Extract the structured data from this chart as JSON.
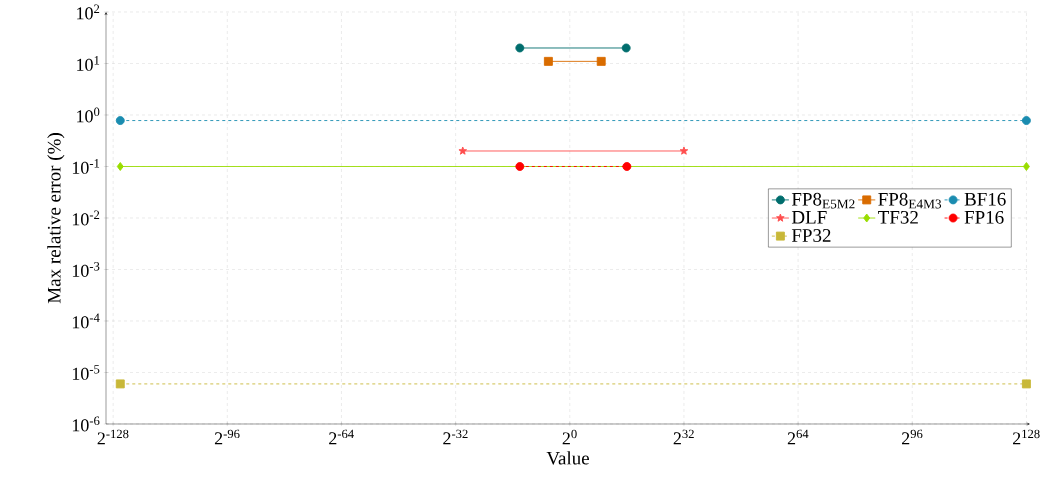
{
  "chart_data": {
    "type": "line",
    "xlabel": "Value",
    "ylabel": "Max relative error (%)",
    "log": "xy",
    "grid": true,
    "legend": "right",
    "xlim": [
      7.346839692639297e-40,
      6.80564733841877e+38
    ],
    "ylim": [
      1e-06,
      100
    ],
    "xticks": [
      {
        "value": 2.938735877055719e-39,
        "label": "2$^{-128}$"
      },
      {
        "value": 1.262177448353619e-29,
        "label": "2$^{-96}$"
      },
      {
        "value": 5.421010862427522e-20,
        "label": "2$^{-64}$"
      },
      {
        "value": 2.3283064365386963e-10,
        "label": "2$^{-32}$"
      },
      {
        "value": 1,
        "label": "2$^{0}$"
      },
      {
        "value": 4294967296,
        "label": "2$^{32}$"
      },
      {
        "value": 1.8446744073709552e+19,
        "label": "2$^{64}$"
      },
      {
        "value": 7.922816251426434e+28,
        "label": "2$^{96}$"
      },
      {
        "value": 3.402823669209385e+38,
        "label": "2$^{128}$"
      }
    ],
    "yticks": [
      {
        "value": 1e-06,
        "label": "10$^{-6}$"
      },
      {
        "value": 1e-05,
        "label": "10$^{-5}$"
      },
      {
        "value": 0.0001,
        "label": "10$^{-4}$"
      },
      {
        "value": 0.001,
        "label": "10$^{-3}$"
      },
      {
        "value": 0.01,
        "label": "10$^{-2}$"
      },
      {
        "value": 0.1,
        "label": "10$^{-1}$"
      },
      {
        "value": 1,
        "label": "10$^{0}$"
      },
      {
        "value": 10,
        "label": "10$^{1}$"
      },
      {
        "value": 100,
        "label": "10$^{2}$"
      }
    ],
    "series": [
      {
        "name": "FP8$_{E5M2}$",
        "color": "#006d6d",
        "marker": "circle",
        "line_style": "solid",
        "x": [
          6.103515625e-05,
          57344
        ],
        "values": [
          20,
          20
        ]
      },
      {
        "name": "FP8$_{E4M3}$",
        "color": "#d96c00",
        "marker": "square",
        "line_style": "solid",
        "x": [
          0.015625,
          448
        ],
        "values": [
          11,
          11
        ]
      },
      {
        "name": "BF16",
        "color": "#1a8cb0",
        "marker": "circle",
        "line_style": "dashed",
        "x": [
          1.1754943508222875e-38,
          3.39e+38
        ],
        "values": [
          0.78,
          0.78
        ]
      },
      {
        "name": "DLF",
        "color": "#ff4d4d",
        "marker": "star",
        "line_style": "solid",
        "x": [
          9.313225746154785e-10,
          4294967296
        ],
        "values": [
          0.2,
          0.2
        ]
      },
      {
        "name": "TF32",
        "color": "#99dd00",
        "marker": "diamond",
        "line_style": "solid",
        "x": [
          1.1754943508222875e-38,
          3.39e+38
        ],
        "values": [
          0.1,
          0.1
        ]
      },
      {
        "name": "FP16",
        "color": "#ff0000",
        "marker": "circle",
        "line_style": "dashed",
        "x": [
          6.103515625e-05,
          65504
        ],
        "values": [
          0.1,
          0.1
        ]
      },
      {
        "name": "FP32",
        "color": "#c8b838",
        "marker": "square",
        "line_style": "dashed",
        "x": [
          1.1754943508222875e-38,
          3.39e+38
        ],
        "values": [
          6e-06,
          6e-06
        ]
      }
    ]
  }
}
